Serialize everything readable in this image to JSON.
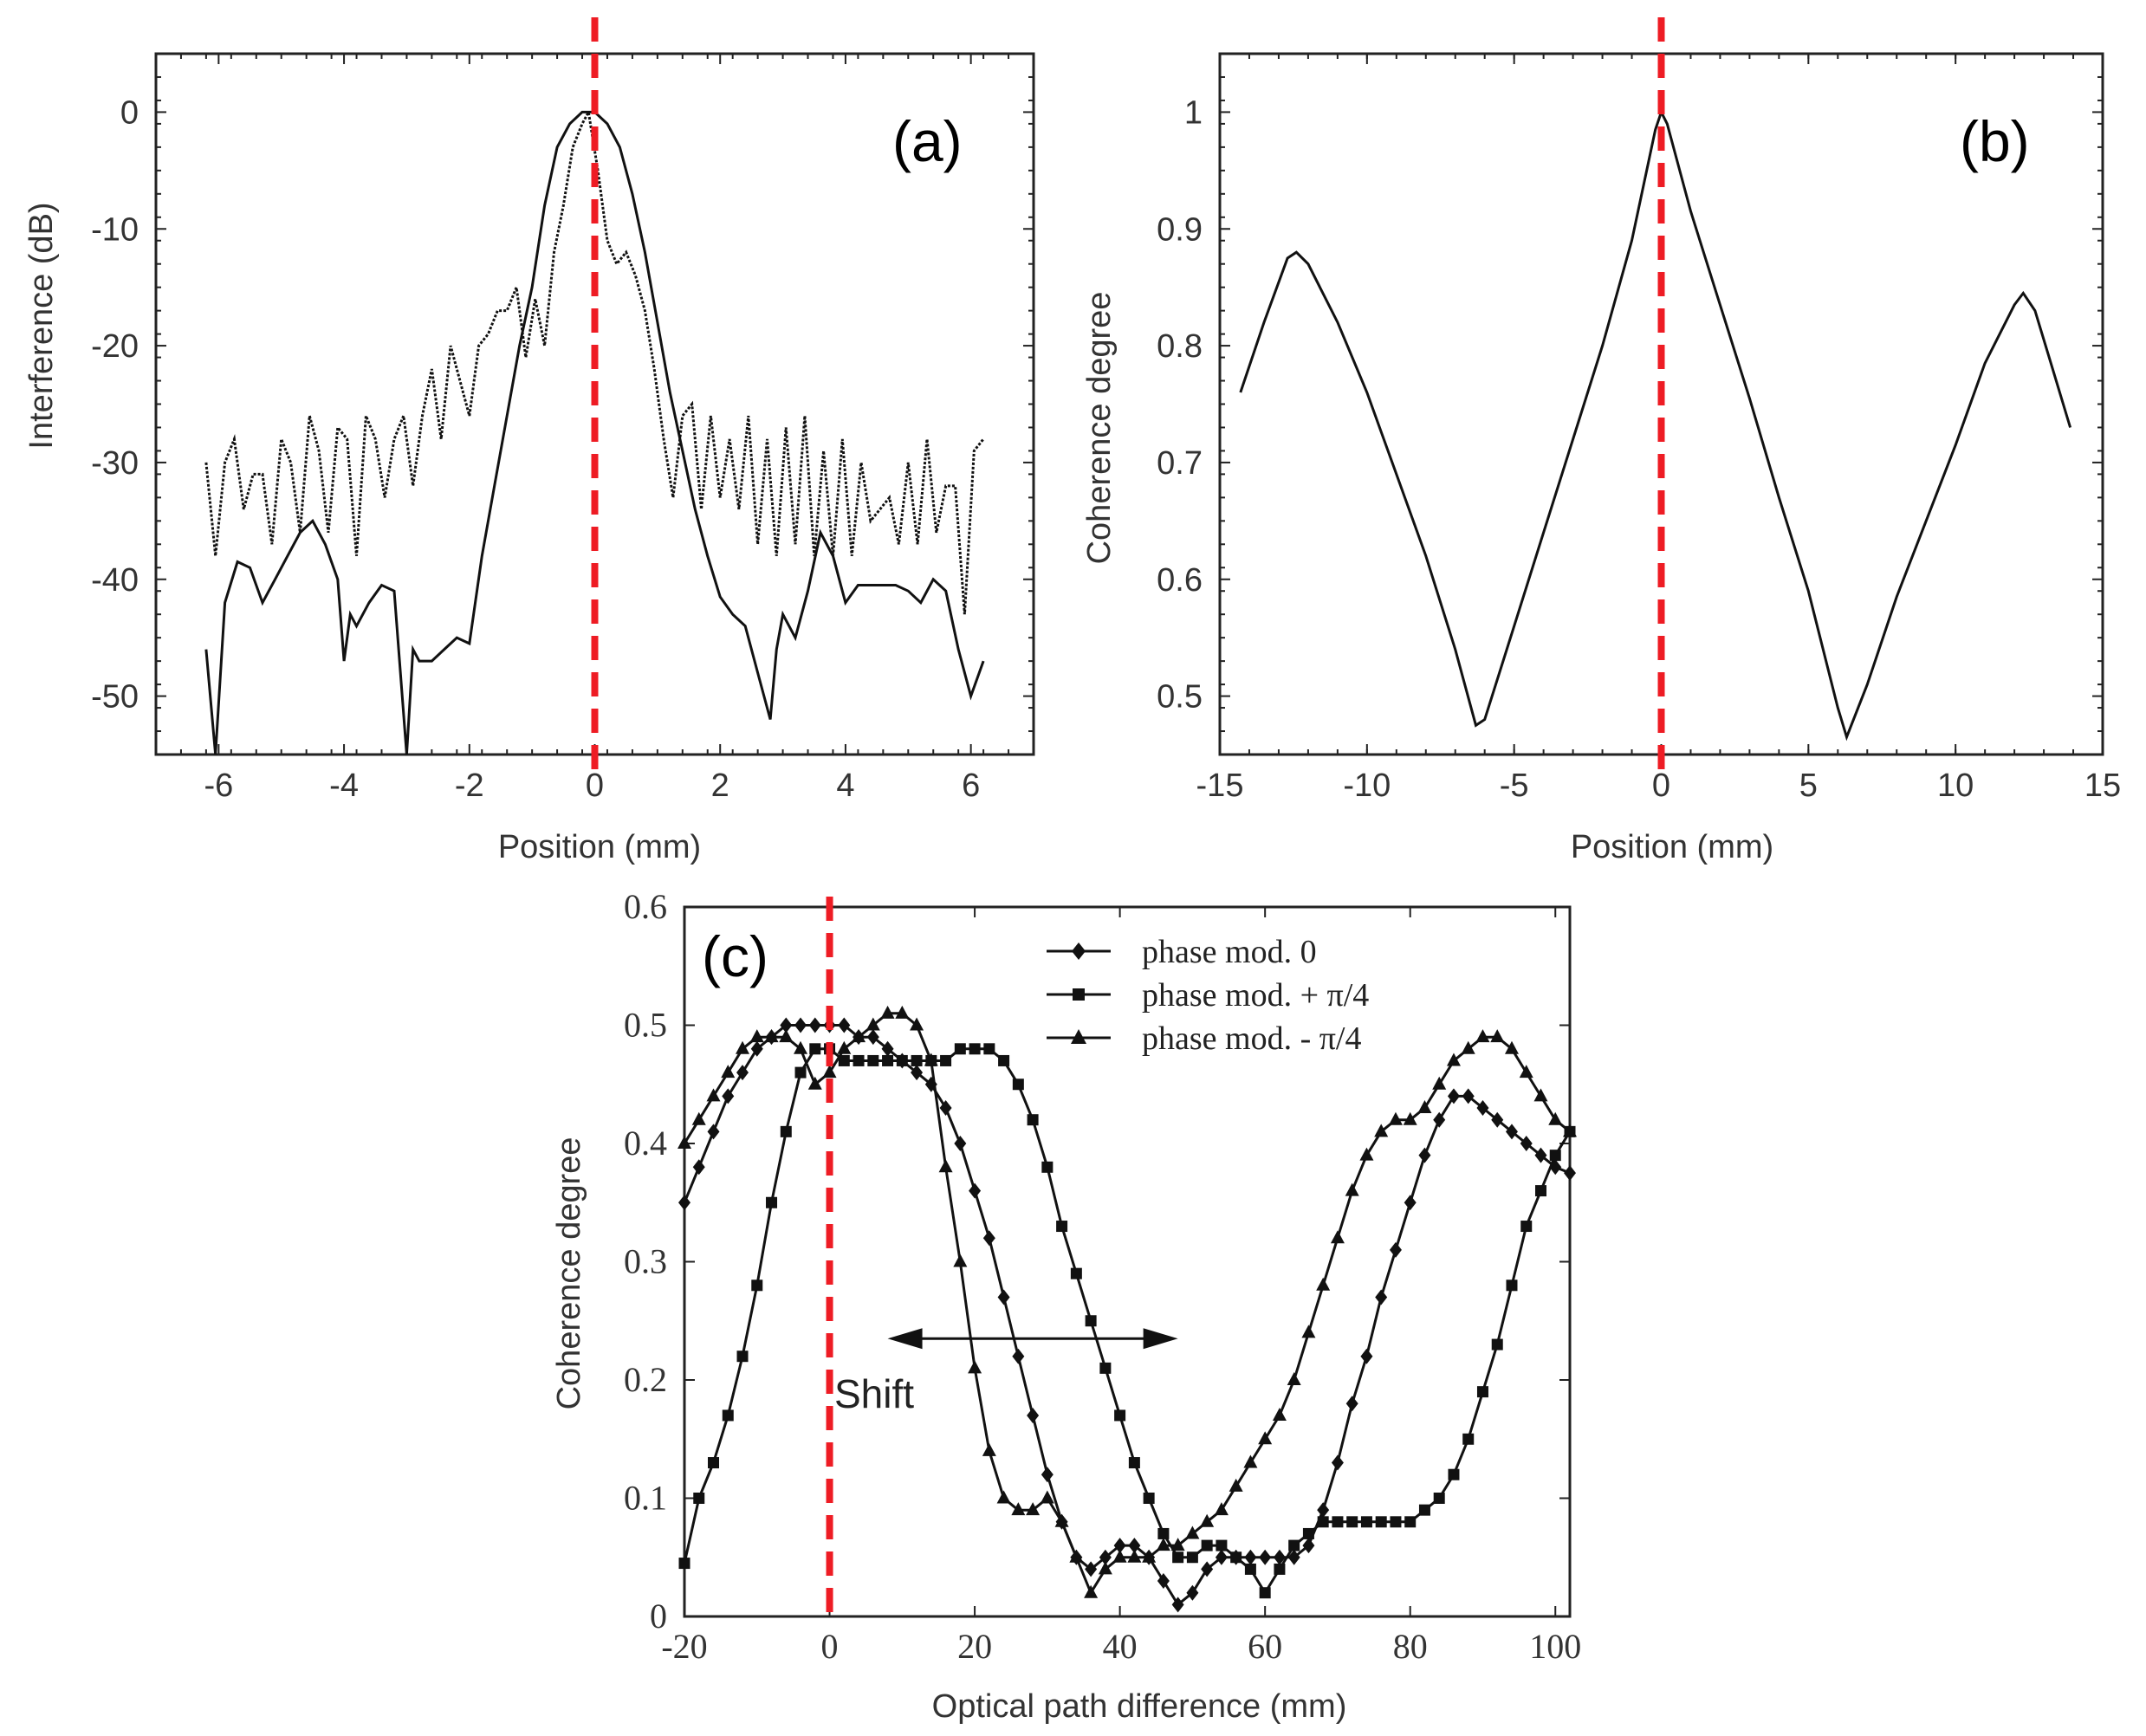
{
  "figure": {
    "accent_color": "#ee1c24",
    "ink_color": "#111111"
  },
  "chart_data": [
    {
      "id": "a",
      "type": "line",
      "panel_label": "(a)",
      "title": "",
      "xlabel": "Position (mm)",
      "ylabel": "Interference (dB)",
      "xlim": [
        -7,
        7
      ],
      "ylim": [
        -55,
        5
      ],
      "xticks": [
        -6,
        -4,
        -2,
        0,
        2,
        4,
        6
      ],
      "yticks": [
        0,
        -10,
        -20,
        -30,
        -40,
        -50
      ],
      "reference_line_x": 0,
      "series": [
        {
          "name": "solid",
          "style": "solid",
          "x": [
            -6.2,
            -6.05,
            -5.9,
            -5.7,
            -5.5,
            -5.3,
            -5.1,
            -4.9,
            -4.7,
            -4.5,
            -4.3,
            -4.1,
            -4.0,
            -3.9,
            -3.8,
            -3.6,
            -3.4,
            -3.2,
            -3.0,
            -2.9,
            -2.8,
            -2.6,
            -2.4,
            -2.2,
            -2.0,
            -1.8,
            -1.6,
            -1.4,
            -1.2,
            -1.0,
            -0.8,
            -0.6,
            -0.4,
            -0.2,
            0.0,
            0.2,
            0.4,
            0.6,
            0.8,
            1.0,
            1.2,
            1.4,
            1.6,
            1.8,
            2.0,
            2.2,
            2.4,
            2.6,
            2.8,
            2.9,
            3.0,
            3.2,
            3.4,
            3.6,
            3.8,
            4.0,
            4.2,
            4.4,
            4.6,
            4.8,
            5.0,
            5.2,
            5.4,
            5.6,
            5.8,
            6.0,
            6.2
          ],
          "y": [
            -46,
            -55,
            -42,
            -38.5,
            -39,
            -42,
            -40,
            -38,
            -36,
            -35,
            -37,
            -40,
            -47,
            -43,
            -44,
            -42,
            -40.5,
            -41,
            -55,
            -46,
            -47,
            -47,
            -46,
            -45,
            -45.5,
            -38,
            -32,
            -26,
            -20,
            -15,
            -8,
            -3,
            -1,
            0,
            0,
            -1,
            -3,
            -7,
            -12,
            -18,
            -24,
            -29,
            -34,
            -38,
            -41.5,
            -43,
            -44,
            -48,
            -52,
            -46,
            -43,
            -45,
            -41,
            -36,
            -38,
            -42,
            -40.5,
            -40.5,
            -40.5,
            -40.5,
            -41,
            -42,
            -40,
            -41,
            -46,
            -50,
            -47
          ]
        },
        {
          "name": "dotted",
          "style": "dotted",
          "x": [
            -6.2,
            -6.05,
            -5.9,
            -5.75,
            -5.6,
            -5.45,
            -5.3,
            -5.15,
            -5.0,
            -4.85,
            -4.7,
            -4.55,
            -4.4,
            -4.25,
            -4.1,
            -3.95,
            -3.8,
            -3.65,
            -3.5,
            -3.35,
            -3.2,
            -3.05,
            -2.9,
            -2.75,
            -2.6,
            -2.45,
            -2.3,
            -2.15,
            -2.0,
            -1.85,
            -1.7,
            -1.55,
            -1.4,
            -1.25,
            -1.1,
            -0.95,
            -0.8,
            -0.65,
            -0.5,
            -0.35,
            -0.2,
            -0.1,
            0.05,
            0.2,
            0.35,
            0.5,
            0.65,
            0.8,
            0.95,
            1.1,
            1.25,
            1.4,
            1.55,
            1.7,
            1.85,
            2.0,
            2.15,
            2.3,
            2.45,
            2.6,
            2.75,
            2.9,
            3.05,
            3.2,
            3.35,
            3.5,
            3.65,
            3.8,
            3.95,
            4.1,
            4.25,
            4.4,
            4.55,
            4.7,
            4.85,
            5.0,
            5.15,
            5.3,
            5.45,
            5.6,
            5.75,
            5.9,
            6.05,
            6.2
          ],
          "y": [
            -30,
            -38,
            -30,
            -28,
            -34,
            -31,
            -31,
            -37,
            -28,
            -30,
            -36,
            -26,
            -29,
            -36,
            -27,
            -28,
            -38,
            -26,
            -28,
            -33,
            -28,
            -26,
            -32,
            -26,
            -22,
            -28,
            -20,
            -23,
            -26,
            -20,
            -19,
            -17,
            -17,
            -15,
            -21,
            -16,
            -20,
            -12,
            -8,
            -3,
            -1,
            0,
            -5,
            -11,
            -13,
            -12,
            -14,
            -17,
            -22,
            -28,
            -33,
            -26,
            -25,
            -34,
            -26,
            -33,
            -28,
            -34,
            -26,
            -37,
            -28,
            -38,
            -27,
            -37,
            -26,
            -38,
            -29,
            -38,
            -28,
            -38,
            -30,
            -35,
            -34,
            -33,
            -37,
            -30,
            -37,
            -28,
            -36,
            -32,
            -32,
            -43,
            -29,
            -28
          ]
        }
      ]
    },
    {
      "id": "b",
      "type": "line",
      "panel_label": "(b)",
      "title": "",
      "xlabel": "Position (mm)",
      "ylabel": "Coherence degree",
      "xlim": [
        -15,
        15
      ],
      "ylim": [
        0.45,
        1.05
      ],
      "xticks": [
        -15,
        -10,
        -5,
        0,
        5,
        10,
        15
      ],
      "yticks": [
        0.5,
        0.6,
        0.7,
        0.8,
        0.9,
        1
      ],
      "ytick_labels": [
        "0.5",
        "0.6",
        "0.7",
        "0.8",
        "0.9",
        "1"
      ],
      "reference_line_x": 0,
      "series": [
        {
          "name": "coherence",
          "style": "solid",
          "x": [
            -14.3,
            -13.5,
            -12.7,
            -12.4,
            -12.0,
            -11.0,
            -10.0,
            -9.0,
            -8.0,
            -7.0,
            -6.3,
            -6.0,
            -5.0,
            -4.0,
            -3.0,
            -2.0,
            -1.0,
            -0.2,
            0.0,
            0.2,
            1.0,
            2.0,
            3.0,
            4.0,
            5.0,
            6.0,
            6.3,
            7.0,
            8.0,
            9.0,
            10.0,
            11.0,
            12.0,
            12.3,
            12.7,
            13.3,
            13.9
          ],
          "y": [
            0.76,
            0.82,
            0.875,
            0.88,
            0.87,
            0.82,
            0.76,
            0.69,
            0.62,
            0.54,
            0.475,
            0.48,
            0.56,
            0.64,
            0.72,
            0.8,
            0.89,
            0.985,
            1.0,
            0.99,
            0.915,
            0.835,
            0.755,
            0.67,
            0.59,
            0.49,
            0.465,
            0.51,
            0.585,
            0.65,
            0.715,
            0.785,
            0.835,
            0.845,
            0.83,
            0.78,
            0.73
          ]
        }
      ]
    },
    {
      "id": "c",
      "type": "line",
      "panel_label": "(c)",
      "title": "",
      "xlabel": "Optical path difference (mm)",
      "ylabel": "Coherence degree",
      "xlim": [
        -20,
        102
      ],
      "ylim": [
        0,
        0.6
      ],
      "xticks": [
        -20,
        0,
        20,
        40,
        60,
        80,
        100
      ],
      "yticks": [
        0,
        0.1,
        0.2,
        0.3,
        0.4,
        0.5,
        0.6
      ],
      "ytick_labels": [
        "0",
        "0.1",
        "0.2",
        "0.3",
        "0.4",
        "0.5",
        "0.6"
      ],
      "reference_line_x": 0,
      "annotation": {
        "text": "Shift",
        "arrow_from_x": 8,
        "arrow_to_x": 48,
        "arrow_y": 0.235,
        "text_x": 2,
        "text_y": 0.185
      },
      "legend_position": "top-right",
      "series": [
        {
          "name": "phase mod. 0",
          "marker": "diamond",
          "x": [
            -20,
            -18,
            -16,
            -14,
            -12,
            -10,
            -8,
            -6,
            -4,
            -2,
            0,
            2,
            4,
            6,
            8,
            10,
            12,
            14,
            16,
            18,
            20,
            22,
            24,
            26,
            28,
            30,
            32,
            34,
            36,
            38,
            40,
            42,
            44,
            46,
            48,
            50,
            52,
            54,
            56,
            58,
            60,
            62,
            64,
            66,
            68,
            70,
            72,
            74,
            76,
            78,
            80,
            82,
            84,
            86,
            88,
            90,
            92,
            94,
            96,
            98,
            100,
            102
          ],
          "y": [
            0.35,
            0.38,
            0.41,
            0.44,
            0.46,
            0.48,
            0.49,
            0.5,
            0.5,
            0.5,
            0.5,
            0.5,
            0.49,
            0.49,
            0.48,
            0.47,
            0.46,
            0.45,
            0.43,
            0.4,
            0.36,
            0.32,
            0.27,
            0.22,
            0.17,
            0.12,
            0.08,
            0.05,
            0.04,
            0.05,
            0.06,
            0.06,
            0.05,
            0.03,
            0.01,
            0.02,
            0.04,
            0.05,
            0.05,
            0.05,
            0.05,
            0.05,
            0.05,
            0.06,
            0.09,
            0.13,
            0.18,
            0.22,
            0.27,
            0.31,
            0.35,
            0.39,
            0.42,
            0.44,
            0.44,
            0.43,
            0.42,
            0.41,
            0.4,
            0.39,
            0.38,
            0.375
          ]
        },
        {
          "name": "phase mod. + π/4",
          "marker": "square",
          "x": [
            -20,
            -18,
            -16,
            -14,
            -12,
            -10,
            -8,
            -6,
            -4,
            -2,
            0,
            2,
            4,
            6,
            8,
            10,
            12,
            14,
            16,
            18,
            20,
            22,
            24,
            26,
            28,
            30,
            32,
            34,
            36,
            38,
            40,
            42,
            44,
            46,
            48,
            50,
            52,
            54,
            56,
            58,
            60,
            62,
            64,
            66,
            68,
            70,
            72,
            74,
            76,
            78,
            80,
            82,
            84,
            86,
            88,
            90,
            92,
            94,
            96,
            98,
            100,
            102
          ],
          "y": [
            0.045,
            0.1,
            0.13,
            0.17,
            0.22,
            0.28,
            0.35,
            0.41,
            0.46,
            0.48,
            0.48,
            0.47,
            0.47,
            0.47,
            0.47,
            0.47,
            0.47,
            0.47,
            0.47,
            0.48,
            0.48,
            0.48,
            0.47,
            0.45,
            0.42,
            0.38,
            0.33,
            0.29,
            0.25,
            0.21,
            0.17,
            0.13,
            0.1,
            0.07,
            0.05,
            0.05,
            0.06,
            0.06,
            0.05,
            0.04,
            0.02,
            0.04,
            0.06,
            0.07,
            0.08,
            0.08,
            0.08,
            0.08,
            0.08,
            0.08,
            0.08,
            0.09,
            0.1,
            0.12,
            0.15,
            0.19,
            0.23,
            0.28,
            0.33,
            0.36,
            0.39,
            0.41
          ]
        },
        {
          "name": "phase mod. - π/4",
          "marker": "triangle",
          "x": [
            -20,
            -18,
            -16,
            -14,
            -12,
            -10,
            -8,
            -6,
            -4,
            -2,
            0,
            2,
            4,
            6,
            8,
            10,
            12,
            14,
            16,
            18,
            20,
            22,
            24,
            26,
            28,
            30,
            32,
            34,
            36,
            38,
            40,
            42,
            44,
            46,
            48,
            50,
            52,
            54,
            56,
            58,
            60,
            62,
            64,
            66,
            68,
            70,
            72,
            74,
            76,
            78,
            80,
            82,
            84,
            86,
            88,
            90,
            92,
            94,
            96,
            98,
            100,
            102
          ],
          "y": [
            0.4,
            0.42,
            0.44,
            0.46,
            0.48,
            0.49,
            0.49,
            0.49,
            0.48,
            0.45,
            0.46,
            0.48,
            0.49,
            0.5,
            0.51,
            0.51,
            0.5,
            0.47,
            0.38,
            0.3,
            0.21,
            0.14,
            0.1,
            0.09,
            0.09,
            0.1,
            0.08,
            0.05,
            0.02,
            0.04,
            0.05,
            0.05,
            0.05,
            0.06,
            0.06,
            0.07,
            0.08,
            0.09,
            0.11,
            0.13,
            0.15,
            0.17,
            0.2,
            0.24,
            0.28,
            0.32,
            0.36,
            0.39,
            0.41,
            0.42,
            0.42,
            0.43,
            0.45,
            0.47,
            0.48,
            0.49,
            0.49,
            0.48,
            0.46,
            0.44,
            0.42,
            0.41
          ]
        }
      ]
    }
  ]
}
